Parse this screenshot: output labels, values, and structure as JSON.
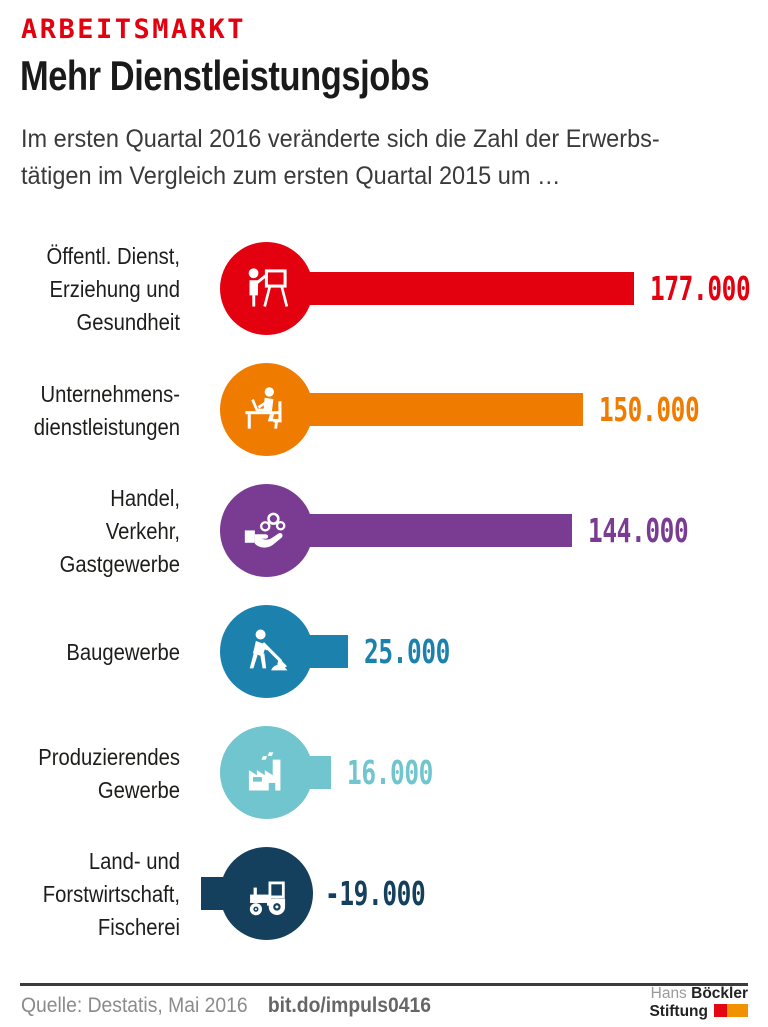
{
  "header": {
    "kicker": "ARBEITSMARKT",
    "title": "Mehr Dienstleistungsjobs",
    "subtitle": "Im ersten Quartal 2016 veränderte sich die Zahl der Erwerbs-\ntätigen im Vergleich zum ersten Quartal 2015 um …"
  },
  "chart_data": {
    "type": "bar",
    "orientation": "horizontal",
    "title": "Mehr Dienstleistungsjobs",
    "categories": [
      "Öffentl. Dienst, Erziehung und Gesundheit",
      "Unternehmensdienstleistungen",
      "Handel, Verkehr, Gastgewerbe",
      "Baugewerbe",
      "Produzierendes Gewerbe",
      "Land- und Forstwirtschaft, Fischerei"
    ],
    "values": [
      177000,
      150000,
      144000,
      25000,
      16000,
      -19000
    ],
    "value_labels": [
      "177.000",
      "150.000",
      "144.000",
      "25.000",
      "16.000",
      "-19.000"
    ],
    "colors": [
      "#e3000f",
      "#ef7c00",
      "#7a3b93",
      "#1c82ad",
      "#70c5ce",
      "#14405d"
    ],
    "xlim": [
      -20000,
      180000
    ],
    "grid": false,
    "legend": false
  },
  "rows": [
    {
      "label": "Öffentl. Dienst,\nErziehung und\nGesundheit",
      "value": 177000,
      "value_label": "177.000",
      "color": "#e3000f",
      "icon": "presentation-trainer"
    },
    {
      "label": "Unternehmens-\ndienstleistungen",
      "value": 150000,
      "value_label": "150.000",
      "color": "#ef7c00",
      "icon": "office-desk-worker"
    },
    {
      "label": "Handel, Verkehr,\nGastgewerbe",
      "value": 144000,
      "value_label": "144.000",
      "color": "#7a3b93",
      "icon": "hand-with-coins"
    },
    {
      "label": "Baugewerbe",
      "value": 25000,
      "value_label": "25.000",
      "color": "#1c82ad",
      "icon": "construction-worker"
    },
    {
      "label": "Produzierendes\nGewerbe",
      "value": 16000,
      "value_label": "16.000",
      "color": "#70c5ce",
      "icon": "factory"
    },
    {
      "label": "Land- und\nForstwirtschaft,\nFischerei",
      "value": -19000,
      "value_label": "-19.000",
      "color": "#14405d",
      "icon": "tractor"
    }
  ],
  "footer": {
    "source": "Quelle: Destatis, Mai 2016",
    "link": "bit.do/impuls0416",
    "logo": {
      "name_light": "Hans",
      "name_bold": "Böckler",
      "line2": "Stiftung",
      "red": "#e30613",
      "orange": "#f29100"
    }
  }
}
